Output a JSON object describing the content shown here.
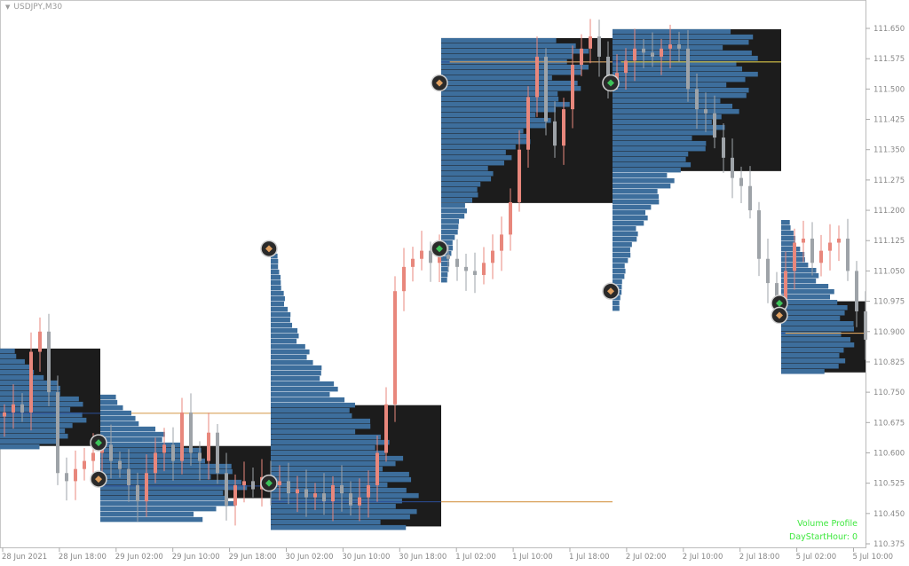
{
  "window": {
    "symbol_title": "USDJPY,M30",
    "dropdown_icon": "triangle-down-icon"
  },
  "indicator_labels": {
    "name": "Volume Profile",
    "param": "DayStartHour: 0",
    "color": "#3ee83e"
  },
  "chart_data": {
    "type": "candlestick",
    "title": "USDJPY,M30",
    "ylim": [
      110.375,
      111.65
    ],
    "y_ticks": [
      "111.650",
      "111.575",
      "111.500",
      "111.425",
      "111.350",
      "111.275",
      "111.200",
      "111.125",
      "111.050",
      "110.975",
      "110.900",
      "110.825",
      "110.750",
      "110.675",
      "110.600",
      "110.525",
      "110.450",
      "110.375"
    ],
    "x_ticks": [
      "28 Jun 2021",
      "28 Jun 18:00",
      "29 Jun 02:00",
      "29 Jun 10:00",
      "29 Jun 18:00",
      "30 Jun 02:00",
      "30 Jun 10:00",
      "30 Jun 18:00",
      "1 Jul 02:00",
      "1 Jul 10:00",
      "1 Jul 18:00",
      "2 Jul 02:00",
      "2 Jul 10:00",
      "2 Jul 18:00",
      "5 Jul 02:00",
      "5 Jul 10:00"
    ],
    "closes": [
      110.7,
      110.72,
      110.7,
      110.85,
      110.9,
      110.75,
      110.55,
      110.53,
      110.56,
      110.58,
      110.6,
      110.62,
      110.58,
      110.56,
      110.52,
      110.48,
      110.55,
      110.6,
      110.62,
      110.58,
      110.7,
      110.6,
      110.58,
      110.65,
      110.55,
      110.47,
      110.52,
      110.53,
      110.51,
      110.54,
      110.52,
      110.53,
      110.5,
      110.51,
      110.49,
      110.5,
      110.48,
      110.52,
      110.5,
      110.47,
      110.49,
      110.52,
      110.6,
      110.72,
      111.0,
      111.06,
      111.08,
      111.1,
      111.07,
      111.09,
      111.08,
      111.06,
      111.05,
      111.04,
      111.07,
      111.1,
      111.14,
      111.22,
      111.35,
      111.48,
      111.58,
      111.42,
      111.36,
      111.45,
      111.56,
      111.6,
      111.63,
      111.58,
      111.52,
      111.54,
      111.57,
      111.6,
      111.59,
      111.58,
      111.6,
      111.61,
      111.6,
      111.5,
      111.45,
      111.44,
      111.38,
      111.33,
      111.28,
      111.26,
      111.2,
      111.08,
      111.02,
      110.98,
      111.05,
      111.12,
      111.13,
      111.07,
      111.1,
      111.12,
      111.13,
      111.05,
      110.95,
      110.88
    ],
    "colors": {
      "up": "#e8877c",
      "down": "#9ea3a8",
      "box": "#1c1c1c",
      "profile": "#3d6e9c",
      "poc_line": "#d9a15a",
      "value_line": "#2b4f9a",
      "today_poc": "#d8c23a"
    },
    "volume_profiles": [
      {
        "session": "28 Jun",
        "box_high": 110.858,
        "box_low": 110.617,
        "profile_high": 110.858,
        "profile_low": 110.617,
        "poc": 110.698,
        "poc_extends_to_session": 1
      },
      {
        "session": "29 Jun",
        "box_high": 110.617,
        "box_low": 110.488,
        "profile_high": 110.744,
        "profile_low": 110.437,
        "poc": 110.518,
        "poc_extends_to_session": 1
      },
      {
        "session": "30 Jun",
        "box_high": 110.718,
        "box_low": 110.418,
        "profile_high": 111.106,
        "profile_low": 110.418,
        "poc": 110.479,
        "poc_extends_to_session": 3
      },
      {
        "session": "1 Jul",
        "box_high": 111.626,
        "box_low": 111.218,
        "profile_high": 111.626,
        "profile_low": 111.029,
        "poc": 111.567,
        "poc_extends_to_session": 3
      },
      {
        "session": "2 Jul",
        "box_high": 111.648,
        "box_low": 111.297,
        "profile_high": 111.648,
        "profile_low": 110.953,
        "poc": 111.567,
        "poc_extends_to_session": 4
      },
      {
        "session": "5 Jul",
        "box_high": 110.975,
        "box_low": 110.799,
        "profile_high": 111.176,
        "profile_low": 110.799,
        "poc": 110.896,
        "poc_extends_to_session": 5
      }
    ],
    "markers": [
      {
        "session": 0,
        "price": 110.625,
        "type": "green"
      },
      {
        "session": 0,
        "price": 110.535,
        "type": "orange"
      },
      {
        "session": 1,
        "price": 111.105,
        "type": "orange"
      },
      {
        "session": 1,
        "price": 110.525,
        "type": "green"
      },
      {
        "session": 2,
        "price": 111.515,
        "type": "orange"
      },
      {
        "session": 2,
        "price": 111.105,
        "type": "green"
      },
      {
        "session": 3,
        "price": 111.515,
        "type": "green"
      },
      {
        "session": 3,
        "price": 111.0,
        "type": "orange"
      },
      {
        "session": 4,
        "price": 110.97,
        "type": "green"
      },
      {
        "session": 4,
        "price": 110.94,
        "type": "orange"
      }
    ]
  }
}
